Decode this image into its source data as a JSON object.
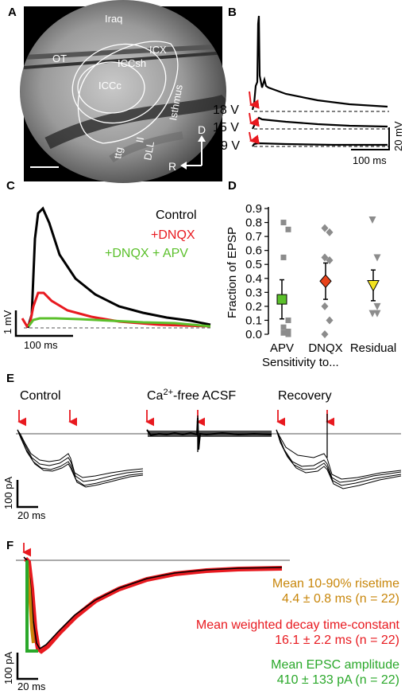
{
  "colors": {
    "black": "#000000",
    "red": "#e8191f",
    "green": "#5bc02b",
    "gray": "#8c8c8c",
    "orange": "#c8860a",
    "yellow": "#f2e21f",
    "diamond_red": "#e8431a",
    "dark_green": "#1f9e1f"
  },
  "panels": {
    "A": "A",
    "B": "B",
    "C": "C",
    "D": "D",
    "E": "E",
    "F": "F"
  },
  "panelA": {
    "labels": {
      "iraq": "Iraq",
      "ot": "OT",
      "icx": "ICX",
      "iccsh": "ICCsh",
      "iccc": "ICCc",
      "isthmus": "Isthmus",
      "ttg": "ttg",
      "ll": "II",
      "dll": "DLL",
      "d": "D",
      "r": "R"
    }
  },
  "panelB": {
    "traces": [
      "18 V",
      "15 V",
      "9 V"
    ],
    "scale_x": "100 ms",
    "scale_y": "20 mV"
  },
  "panelC": {
    "legend": [
      "Control",
      "+DNQX",
      "+DNQX + APV"
    ],
    "scale_x": "100 ms",
    "scale_y": "1 mV"
  },
  "chart_data": {
    "type": "scatter",
    "ylabel": "Fraction of EPSP",
    "xlabel": "Sensitivity to...",
    "categories": [
      "APV",
      "DNQX",
      "Residual"
    ],
    "ylim": [
      0,
      0.9
    ],
    "yticks": [
      "0.0",
      "0.1",
      "0.2",
      "0.3",
      "0.4",
      "0.5",
      "0.6",
      "0.7",
      "0.8",
      "0.9"
    ],
    "series": [
      {
        "category": "APV",
        "marker": "square",
        "individual": [
          0.8,
          0.75,
          0.55,
          0.1,
          0.05,
          0.02,
          0.01,
          0.0
        ],
        "mean": 0.25,
        "error": 0.14
      },
      {
        "category": "DNQX",
        "marker": "diamond",
        "individual": [
          0.76,
          0.73,
          0.55,
          0.53,
          0.2,
          0.1,
          0.0
        ],
        "mean": 0.38,
        "error": 0.13
      },
      {
        "category": "Residual",
        "marker": "triangle",
        "individual": [
          0.82,
          0.55,
          0.35,
          0.2,
          0.15,
          0.15
        ],
        "mean": 0.35,
        "error": 0.11
      }
    ]
  },
  "panelE": {
    "conditions": [
      "Control",
      "Ca",
      "Recovery"
    ],
    "ca_superscript": "2+",
    "ca_suffix": "-free ACSF",
    "scale_y": "100 pA",
    "scale_x": "20 ms"
  },
  "panelF": {
    "risetime_title": "Mean 10-90% risetime",
    "risetime_value": "4.4 ± 0.8 ms (n = 22)",
    "decay_title": "Mean weighted decay time-constant",
    "decay_value": "16.1 ± 2.2 ms (n = 22)",
    "amp_title": "Mean EPSC amplitude",
    "amp_value": "410 ± 133 pA (n = 22)",
    "scale_y": "100 pA",
    "scale_x": "20 ms"
  }
}
